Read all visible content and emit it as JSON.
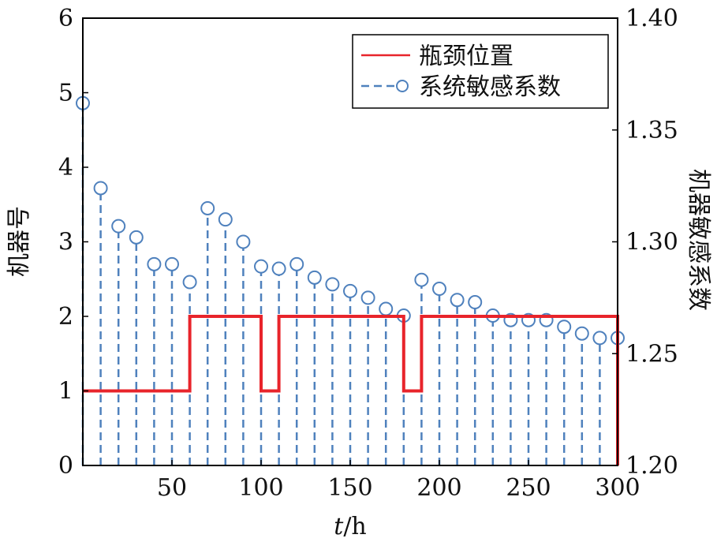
{
  "chart_data": {
    "type": "line",
    "xlabel_italic": "t",
    "xlabel_unit": "/h",
    "ylabel_left": "机器号",
    "ylabel_right": "机器敏感系数",
    "xlim": [
      0,
      300
    ],
    "ylim_left": [
      0,
      6
    ],
    "ylim_right": [
      1.2,
      1.4
    ],
    "x_ticks": [
      50,
      100,
      150,
      200,
      250,
      300
    ],
    "y_ticks_left": [
      0,
      1,
      2,
      3,
      4,
      5,
      6
    ],
    "y_ticks_right": [
      "1.20",
      "1.25",
      "1.30",
      "1.35",
      "1.40"
    ],
    "grid": false,
    "legend_position": "top-right",
    "colors": {
      "bottleneck": "#e8242b",
      "sensitivity": "#4f81bd"
    },
    "series": [
      {
        "name": "瓶颈位置",
        "kind": "step",
        "axis": "left",
        "points": [
          [
            0,
            1
          ],
          [
            60,
            1
          ],
          [
            60,
            2
          ],
          [
            100,
            2
          ],
          [
            100,
            1
          ],
          [
            110,
            1
          ],
          [
            110,
            2
          ],
          [
            180,
            2
          ],
          [
            180,
            1
          ],
          [
            190,
            1
          ],
          [
            190,
            2
          ],
          [
            300,
            2
          ],
          [
            300,
            0
          ]
        ]
      },
      {
        "name": "系统敏感系数",
        "kind": "stem",
        "axis": "right",
        "x": [
          0,
          10,
          20,
          30,
          40,
          50,
          60,
          70,
          80,
          90,
          100,
          110,
          120,
          130,
          140,
          150,
          160,
          170,
          180,
          190,
          200,
          210,
          220,
          230,
          240,
          250,
          260,
          270,
          280,
          290,
          300
        ],
        "values": [
          1.362,
          1.324,
          1.307,
          1.302,
          1.29,
          1.29,
          1.282,
          1.315,
          1.31,
          1.3,
          1.289,
          1.288,
          1.29,
          1.284,
          1.281,
          1.278,
          1.275,
          1.27,
          1.267,
          1.283,
          1.279,
          1.274,
          1.273,
          1.267,
          1.265,
          1.265,
          1.265,
          1.262,
          1.259,
          1.257,
          1.257
        ]
      }
    ]
  }
}
